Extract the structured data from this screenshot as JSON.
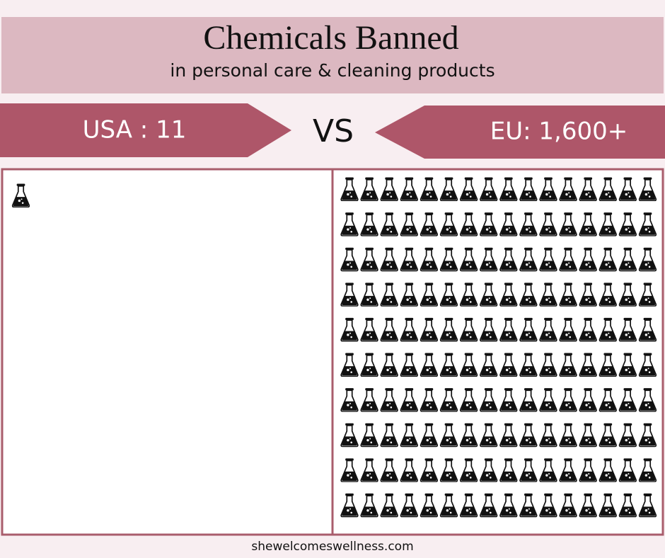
{
  "header": {
    "title": "Chemicals Banned",
    "subtitle": "in personal care & cleaning products"
  },
  "comparison": {
    "left_label": "USA : 11",
    "separator": "VS",
    "right_label": "EU: 1,600+"
  },
  "footer": {
    "text": "shewelcomeswellness.com"
  }
}
